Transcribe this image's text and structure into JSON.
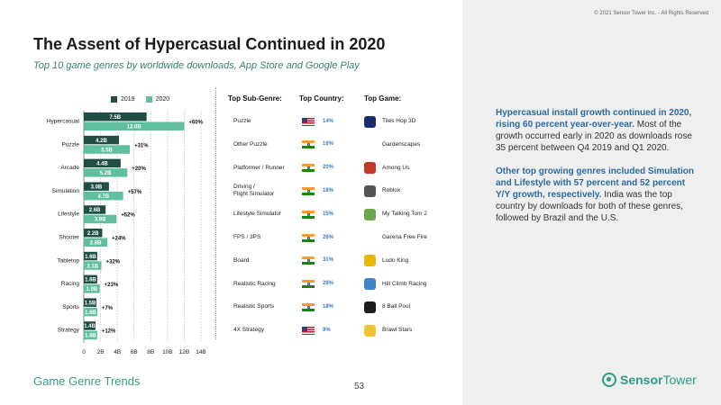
{
  "title": "The Assent of Hypercasual Continued in 2020",
  "subtitle": "Top 10 game genres by worldwide downloads, App Store and Google Play",
  "legend": {
    "label_2019": "2019",
    "label_2020": "2020"
  },
  "colors": {
    "bar_2019": "#1f4e45",
    "bar_2020": "#5fbf9f",
    "pct_blue": "#3b7dbd",
    "accent": "#2e9b84"
  },
  "columns": {
    "sub_genre": "Top Sub-Genre:",
    "country": "Top Country:",
    "game": "Top Game:"
  },
  "chart_data": {
    "type": "bar",
    "orientation": "horizontal",
    "categories": [
      "Hypercasual",
      "Puzzle",
      "Arcade",
      "Simulation",
      "Lifestyle",
      "Shooter",
      "Tabletop",
      "Racing",
      "Sports",
      "Strategy"
    ],
    "series": [
      {
        "name": "2019",
        "values": [
          7.5,
          4.2,
          4.4,
          3.0,
          2.6,
          2.2,
          1.6,
          1.6,
          1.5,
          1.4
        ],
        "labels": [
          "7.5B",
          "4.2B",
          "4.4B",
          "3.0B",
          "2.6B",
          "2.2B",
          "1.6B",
          "1.6B",
          "1.5B",
          "1.4B"
        ]
      },
      {
        "name": "2020",
        "values": [
          12.0,
          5.5,
          5.2,
          4.7,
          3.9,
          2.8,
          2.1,
          1.9,
          1.6,
          1.6
        ],
        "labels": [
          "12.0B",
          "5.5B",
          "5.2B",
          "4.7B",
          "3.9B",
          "2.8B",
          "2.1B",
          "1.9B",
          "1.6B",
          "1.6B"
        ]
      }
    ],
    "growth": [
      "+60%",
      "+31%",
      "+20%",
      "+57%",
      "+52%",
      "+24%",
      "+32%",
      "+23%",
      "+7%",
      "+12%"
    ],
    "xticks": [
      "0",
      "2B",
      "4B",
      "6B",
      "8B",
      "10B",
      "12B",
      "14B"
    ],
    "xlim": [
      0,
      14
    ],
    "grid": "vertical dotted",
    "legend": "top"
  },
  "rows": [
    {
      "sub": "Puzzle",
      "country": "us",
      "share": "14%",
      "game": "Tiles Hop 3D",
      "icon": "tiles-hop-icon"
    },
    {
      "sub": "Other Puzzle",
      "country": "in",
      "share": "16%",
      "game": "Gardenscapes",
      "icon": ""
    },
    {
      "sub": "Platformer / Runner",
      "country": "in",
      "share": "20%",
      "game": "Among Us",
      "icon": "among-us-icon"
    },
    {
      "sub": "Driving /\nFlight Simulator",
      "country": "in",
      "share": "18%",
      "game": "Roblox",
      "icon": "roblox-icon"
    },
    {
      "sub": "Lifestyle Simulator",
      "country": "in",
      "share": "15%",
      "game": "My Talking Tom 2",
      "icon": "talking-tom-icon"
    },
    {
      "sub": "FPS / 3PS",
      "country": "in",
      "share": "26%",
      "game": "Garena Free Fire",
      "icon": ""
    },
    {
      "sub": "Board",
      "country": "in",
      "share": "31%",
      "game": "Ludo King",
      "icon": "ludo-king-icon"
    },
    {
      "sub": "Realistic Racing",
      "country": "in",
      "share": "28%",
      "game": "Hill Climb Racing",
      "icon": "hill-climb-icon"
    },
    {
      "sub": "Realistic Sports",
      "country": "in",
      "share": "18%",
      "game": "8 Ball Pool",
      "icon": "eight-ball-icon"
    },
    {
      "sub": "4X Strategy",
      "country": "us",
      "share": "9%",
      "game": "Brawl Stars",
      "icon": "brawl-stars-icon"
    }
  ],
  "copyright": "© 2021 Sensor Tower Inc. - All Rights Reserved",
  "para1_bold": "Hypercasual install growth continued in 2020, rising 60 percent year-over-year.",
  "para1_rest": " Most of the growth occurred early in 2020 as downloads rose 35 percent between Q4 2019 and Q1 2020.",
  "para2_bold": "Other top growing genres included Simulation and Lifestyle with 57 percent and 52 percent Y/Y growth, respectively.",
  "para2_rest": " India was the top country by downloads for both of these genres, followed by Brazil and the U.S.",
  "footer": "Game Genre Trends",
  "page_number": "53",
  "logo": {
    "bold": "Sensor",
    "thin": "Tower"
  }
}
